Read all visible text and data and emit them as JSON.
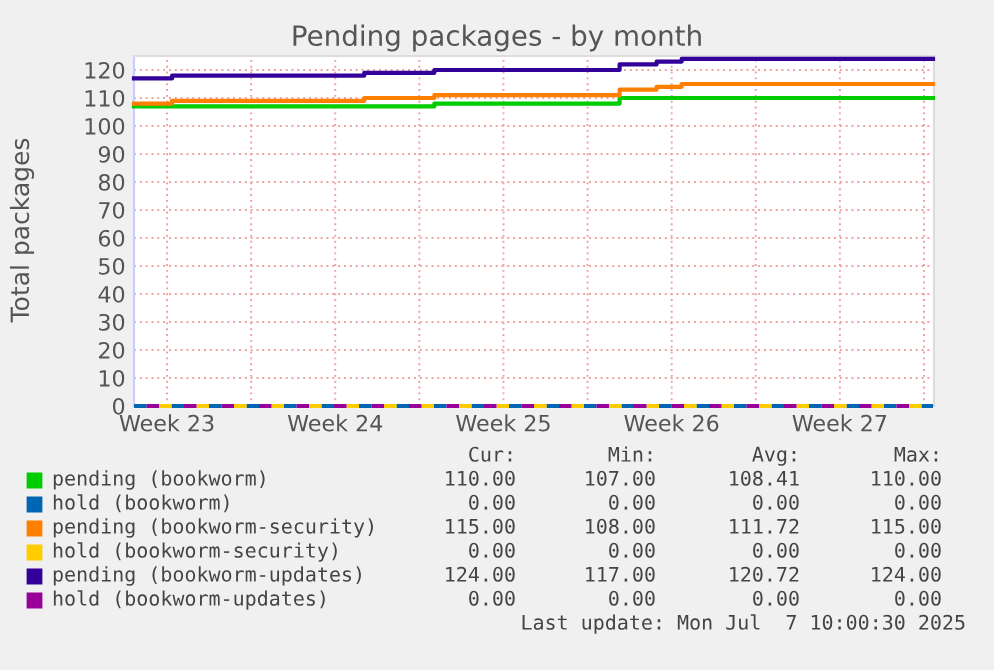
{
  "chart_data": {
    "type": "step",
    "title": "Pending packages - by month",
    "ylabel": "Total packages",
    "xlim": [
      "2025-06-04T03:00",
      "2025-07-07T10:00"
    ],
    "ylim": [
      0,
      125
    ],
    "xticks": [
      {
        "value": "2025-06-05T12:00",
        "label": "Week 23"
      },
      {
        "value": "2025-06-09",
        "label": null
      },
      {
        "value": "2025-06-12T12:00",
        "label": "Week 24"
      },
      {
        "value": "2025-06-16",
        "label": null
      },
      {
        "value": "2025-06-19T12:00",
        "label": "Week 25"
      },
      {
        "value": "2025-06-23",
        "label": null
      },
      {
        "value": "2025-06-26T12:00",
        "label": "Week 26"
      },
      {
        "value": "2025-06-30",
        "label": null
      },
      {
        "value": "2025-07-03T12:00",
        "label": "Week 27"
      },
      {
        "value": "2025-07-07",
        "label": null
      }
    ],
    "yticks": [
      0,
      10,
      20,
      30,
      40,
      50,
      60,
      70,
      80,
      90,
      100,
      110,
      120
    ],
    "grid": true,
    "legend": "bottom",
    "marker": "none",
    "line_style": "solid",
    "series": [
      {
        "name": "pending (bookworm)",
        "color": "#00cc00",
        "x": [
          "2025-06-04T03:00",
          "2025-06-16T15:00",
          "2025-06-24T08:00",
          "2025-07-07T09:00"
        ],
        "values": [
          107,
          108,
          110,
          110
        ]
      },
      {
        "name": "hold (bookworm)",
        "color": "#0066b3",
        "line_style": "dashed",
        "x": [
          "2025-06-04T03:00",
          "2025-07-07T09:00"
        ],
        "values": [
          0,
          0
        ]
      },
      {
        "name": "pending (bookworm-security)",
        "color": "#ff8000",
        "x": [
          "2025-06-04T03:00",
          "2025-06-05T17:00",
          "2025-06-13T17:00",
          "2025-06-16T15:00",
          "2025-06-24T08:00",
          "2025-06-25T21:00",
          "2025-06-26T22:00",
          "2025-07-07T09:00"
        ],
        "values": [
          108,
          109,
          110,
          111,
          113,
          114,
          115,
          115
        ]
      },
      {
        "name": "hold (bookworm-security)",
        "color": "#ffcc00",
        "line_style": "dashed",
        "x": [
          "2025-06-04T03:00",
          "2025-07-07T09:00"
        ],
        "values": [
          0,
          0
        ]
      },
      {
        "name": "pending (bookworm-updates)",
        "color": "#330099",
        "x": [
          "2025-06-04T03:00",
          "2025-06-05T17:00",
          "2025-06-13T17:00",
          "2025-06-16T15:00",
          "2025-06-24T08:00",
          "2025-06-25T21:00",
          "2025-06-26T22:00",
          "2025-07-07T09:00"
        ],
        "values": [
          117,
          118,
          119,
          120,
          122,
          123,
          124,
          124
        ]
      },
      {
        "name": "hold (bookworm-updates)",
        "color": "#990099",
        "line_style": "dashed",
        "x": [
          "2025-06-04T03:00",
          "2025-07-07T09:00"
        ],
        "values": [
          0,
          0
        ]
      }
    ],
    "annotations": [
      "Cur:",
      "Min:",
      "Avg:",
      "Max:",
      "110.00",
      "107.00",
      "108.41",
      "110.00",
      "0.00",
      "0.00",
      "0.00",
      "0.00",
      "115.00",
      "108.00",
      "111.72",
      "115.00",
      "0.00",
      "0.00",
      "0.00",
      "0.00",
      "124.00",
      "117.00",
      "120.72",
      "124.00",
      "0.00",
      "0.00",
      "0.00",
      "0.00",
      "Last update: Mon Jul  7 10:00:30 2025"
    ]
  }
}
